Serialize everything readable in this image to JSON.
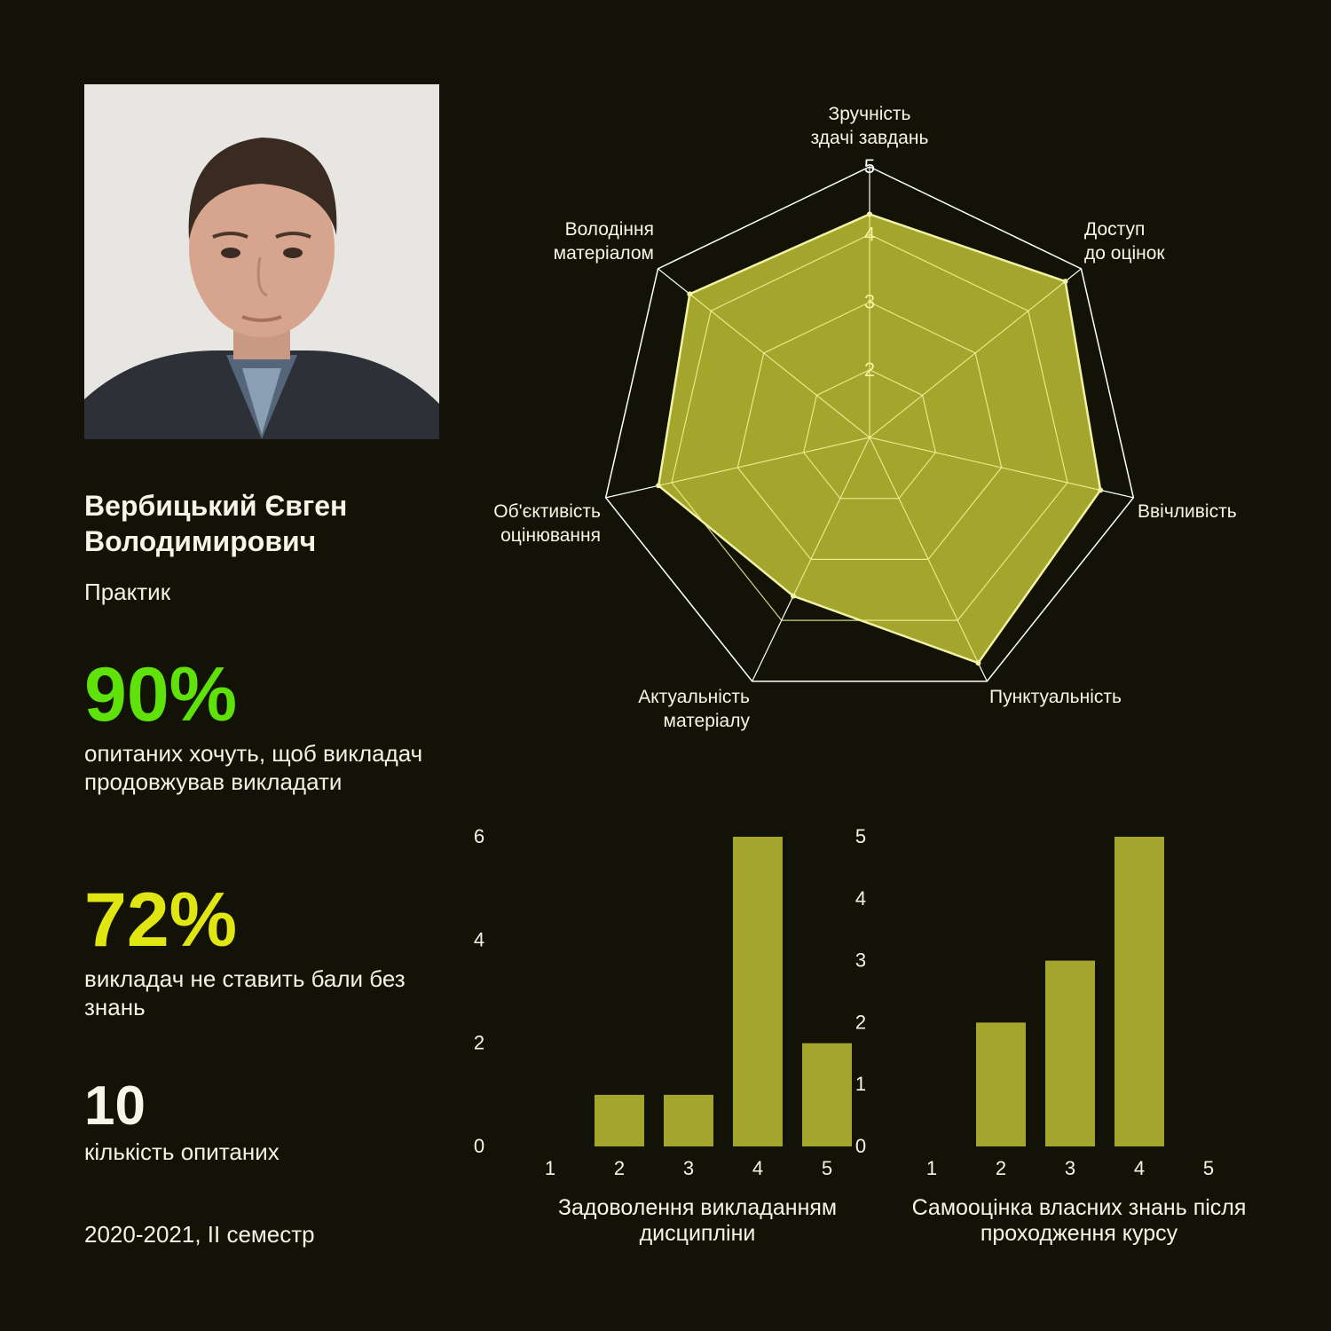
{
  "profile": {
    "name_line1": "Вербицький Євген",
    "name_line2": "Володимирович",
    "role": "Практик"
  },
  "stats": {
    "continue_percent": "90%",
    "continue_label": "опитаних хочуть, щоб викладач продовжував викладати",
    "fair_percent": "72%",
    "fair_label": "викладач не ставить бали без знань",
    "respondents": "10",
    "respondents_label": "кількість опитаних"
  },
  "semester": "2020-2021, II семестр",
  "colors": {
    "fill": "#a4a52c",
    "outline": "#f1f2a4",
    "grid": "#f4f39a",
    "green": "#5ee20a",
    "yellow": "#dfe611"
  },
  "chart_data": [
    {
      "type": "radar",
      "axes": [
        [
          "Зручність",
          "здачі завдань"
        ],
        [
          "Доступ",
          "до оцінок"
        ],
        [
          "Ввічливість"
        ],
        [
          "Пунктуальність"
        ],
        [
          "Актуальність",
          "матеріалу"
        ],
        [
          "Об'єктивість",
          "оцінювання"
        ],
        [
          "Володіння",
          "матеріалом"
        ]
      ],
      "values": [
        4.3,
        4.7,
        4.5,
        4.7,
        3.6,
        4.2,
        4.4
      ],
      "range": [
        1,
        5
      ],
      "ticks": [
        "2",
        "3",
        "4",
        "5"
      ]
    },
    {
      "type": "bar",
      "title": [
        "Задоволення викладанням",
        "дисципліни"
      ],
      "categories": [
        "1",
        "2",
        "3",
        "4",
        "5"
      ],
      "values": [
        0,
        1,
        1,
        6,
        2
      ],
      "ylim": [
        0,
        6
      ],
      "yticks": [
        "0",
        "2",
        "4",
        "6"
      ]
    },
    {
      "type": "bar",
      "title": [
        "Самооцінка власних знань після",
        "проходження курсу"
      ],
      "categories": [
        "1",
        "2",
        "3",
        "4",
        "5"
      ],
      "values": [
        0,
        2,
        3,
        5,
        0
      ],
      "ylim": [
        0,
        5
      ],
      "yticks": [
        "0",
        "1",
        "2",
        "3",
        "4",
        "5"
      ]
    }
  ]
}
